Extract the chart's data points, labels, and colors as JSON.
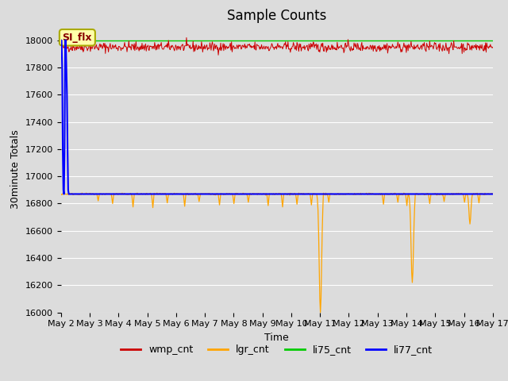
{
  "title": "Sample Counts",
  "xlabel": "Time",
  "ylabel": "30minute Totals",
  "ylim": [
    16000,
    18100
  ],
  "xlim_days": [
    0,
    15
  ],
  "x_tick_labels": [
    "May 2",
    "May 3",
    "May 4",
    "May 5",
    "May 6",
    "May 7",
    "May 8",
    "May 9",
    "May 10",
    "May 11",
    "May 12",
    "May 13",
    "May 14",
    "May 15",
    "May 16",
    "May 17"
  ],
  "x_tick_positions": [
    0,
    1,
    2,
    3,
    4,
    5,
    6,
    7,
    8,
    9,
    10,
    11,
    12,
    13,
    14,
    15
  ],
  "ytick_values": [
    16000,
    16200,
    16400,
    16600,
    16800,
    17000,
    17200,
    17400,
    17600,
    17800,
    18000
  ],
  "series": {
    "wmp_cnt": {
      "color": "#cc0000",
      "base_value": 17950,
      "noise": 18,
      "label": "wmp_cnt"
    },
    "lgr_cnt": {
      "color": "#ffa500",
      "base_value": 16870,
      "label": "lgr_cnt"
    },
    "li75_cnt": {
      "color": "#00cc00",
      "base_value": 18000,
      "label": "li75_cnt"
    },
    "li77_cnt": {
      "color": "#0000ff",
      "label": "li77_cnt"
    }
  },
  "annotation": {
    "text": "SI_flx",
    "facecolor": "#ffffaa",
    "edgecolor": "#aaaa00",
    "fontsize": 9,
    "fontweight": "bold",
    "color": "#880000"
  },
  "legend_entries": [
    "wmp_cnt",
    "lgr_cnt",
    "li75_cnt",
    "li77_cnt"
  ],
  "legend_colors": [
    "#cc0000",
    "#ffa500",
    "#00cc00",
    "#0000ff"
  ],
  "plot_bg_color": "#dcdcdc",
  "fig_bg_color": "#dcdcdc",
  "grid_color": "#ffffff",
  "title_fontsize": 12,
  "axis_fontsize": 9,
  "tick_fontsize": 8
}
